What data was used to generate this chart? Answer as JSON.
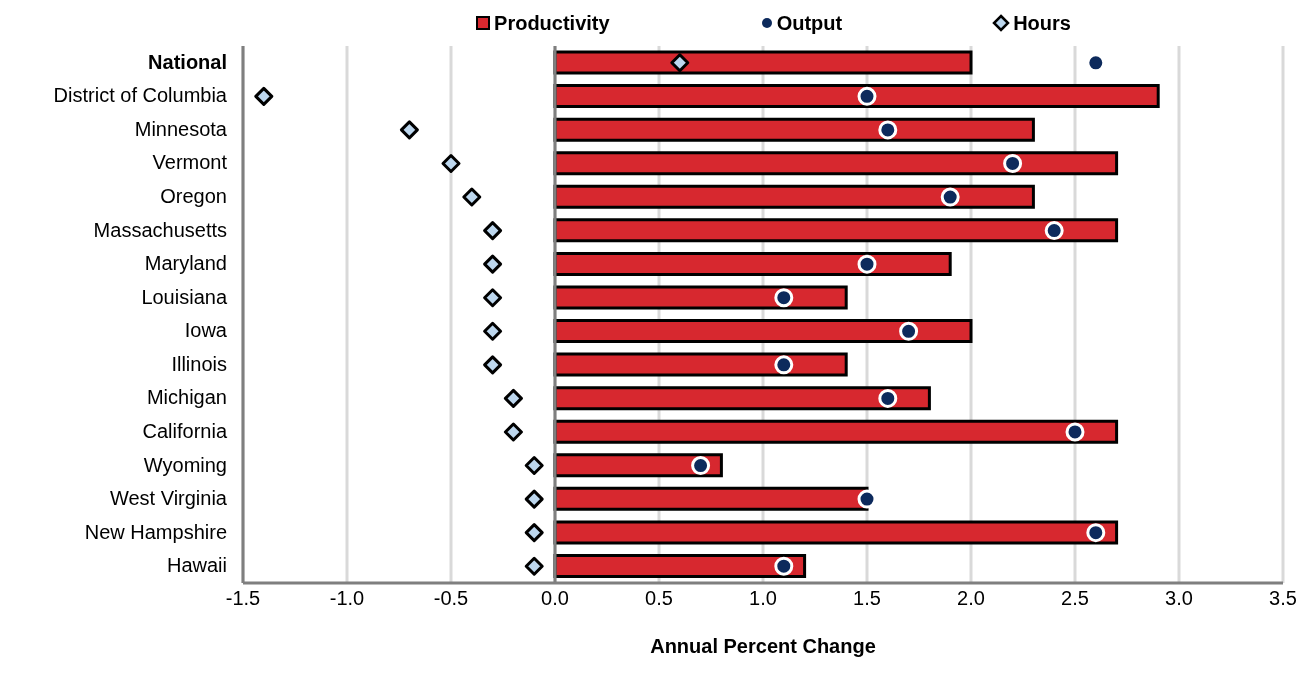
{
  "chart_data": {
    "type": "bar",
    "orientation": "horizontal",
    "xlabel": "Annual Percent Change",
    "categories": [
      "National",
      "District of Columbia",
      "Minnesota",
      "Vermont",
      "Oregon",
      "Massachusetts",
      "Maryland",
      "Louisiana",
      "Iowa",
      "Illinois",
      "Michigan",
      "California",
      "Wyoming",
      "West Virginia",
      "New Hampshire",
      "Hawaii"
    ],
    "series": [
      {
        "name": "Productivity",
        "type": "bar",
        "color": "#d7282f",
        "values": [
          2.0,
          2.9,
          2.3,
          2.7,
          2.3,
          2.7,
          1.9,
          1.4,
          2.0,
          1.4,
          1.8,
          2.7,
          0.8,
          1.5,
          2.7,
          1.2
        ]
      },
      {
        "name": "Output",
        "type": "scatter",
        "marker": "circle",
        "color": "#0d2a5c",
        "values": [
          2.6,
          1.5,
          1.6,
          2.2,
          1.9,
          2.4,
          1.5,
          1.1,
          1.7,
          1.1,
          1.6,
          2.5,
          0.7,
          1.5,
          2.6,
          1.1
        ]
      },
      {
        "name": "Hours",
        "type": "scatter",
        "marker": "diamond",
        "color": "#bdd7ee",
        "values": [
          0.6,
          -1.4,
          -0.7,
          -0.5,
          -0.4,
          -0.3,
          -0.3,
          -0.3,
          -0.3,
          -0.3,
          -0.2,
          -0.2,
          -0.1,
          -0.1,
          -0.1,
          -0.1
        ]
      }
    ],
    "xlim": [
      -1.5,
      3.5
    ],
    "xticks": [
      -1.5,
      {
        "value": -1,
        "label": "-1.0"
      },
      -0.5,
      {
        "value": 0,
        "label": "0.0"
      },
      0.5,
      {
        "value": 1,
        "label": "1.0"
      },
      1.5,
      {
        "value": 2,
        "label": "2.0"
      },
      2.5,
      {
        "value": 3,
        "label": "3.0"
      },
      3.5
    ],
    "ref_lines": [
      {
        "axis": "x",
        "value": 0,
        "color": "#7f7f7f"
      }
    ],
    "grid": "x",
    "legend": "top"
  }
}
